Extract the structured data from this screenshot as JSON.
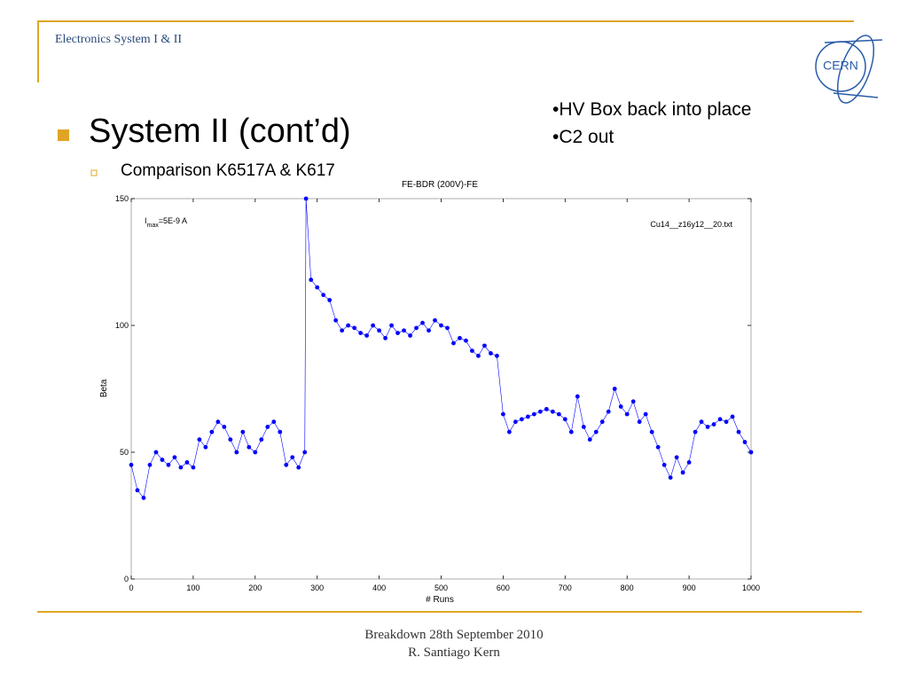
{
  "header": "Electronics System I & II",
  "logo": "CERN",
  "heading": "System II (cont’d)",
  "subheading": "Comparison K6517A & K617",
  "notes": [
    "•HV Box back into place",
    "•C2 out"
  ],
  "footer": [
    "Breakdown 28th September 2010",
    "R. Santiago Kern"
  ],
  "chart_data": {
    "type": "line",
    "title": "FE-BDR (200V)-FE",
    "x_label": "# Runs",
    "y_label": "Beta",
    "annotation": {
      "base": "I",
      "sub": "max",
      "rest": "=5E-9 A"
    },
    "file_label": "Cu14__z16y12__20.txt",
    "xlim": [
      0,
      1000
    ],
    "ylim": [
      0,
      150
    ],
    "xticks": [
      0,
      100,
      200,
      300,
      400,
      500,
      600,
      700,
      800,
      900,
      1000
    ],
    "yticks": [
      0,
      50,
      100,
      150
    ],
    "grid": false,
    "x": [
      0,
      10,
      20,
      30,
      40,
      50,
      60,
      70,
      80,
      90,
      100,
      110,
      120,
      130,
      140,
      150,
      160,
      170,
      180,
      190,
      200,
      210,
      220,
      230,
      240,
      250,
      260,
      270,
      280,
      282,
      290,
      300,
      310,
      320,
      330,
      340,
      350,
      360,
      370,
      380,
      390,
      400,
      410,
      420,
      430,
      440,
      450,
      460,
      470,
      480,
      490,
      500,
      510,
      520,
      530,
      540,
      550,
      560,
      570,
      580,
      590,
      600,
      610,
      620,
      630,
      640,
      650,
      660,
      670,
      680,
      690,
      700,
      710,
      720,
      730,
      740,
      750,
      760,
      770,
      780,
      790,
      800,
      810,
      820,
      830,
      840,
      850,
      860,
      870,
      880,
      890,
      900,
      910,
      920,
      930,
      940,
      950,
      960,
      970,
      980,
      990,
      1000
    ],
    "series": [
      {
        "color": "#0000ff",
        "values": [
          45,
          35,
          32,
          45,
          50,
          47,
          45,
          48,
          44,
          46,
          44,
          55,
          52,
          58,
          62,
          60,
          55,
          50,
          58,
          52,
          50,
          55,
          60,
          62,
          58,
          45,
          48,
          44,
          50,
          150,
          118,
          115,
          112,
          110,
          102,
          98,
          100,
          99,
          97,
          96,
          100,
          98,
          95,
          100,
          97,
          98,
          96,
          99,
          101,
          98,
          102,
          100,
          99,
          93,
          95,
          94,
          90,
          88,
          92,
          89,
          88,
          65,
          58,
          62,
          63,
          64,
          65,
          66,
          67,
          66,
          65,
          63,
          58,
          72,
          60,
          55,
          58,
          62,
          66,
          75,
          68,
          65,
          70,
          62,
          65,
          58,
          52,
          45,
          40,
          48,
          42,
          46,
          58,
          62,
          60,
          61,
          63,
          62,
          64,
          58,
          54,
          50
        ]
      }
    ]
  }
}
